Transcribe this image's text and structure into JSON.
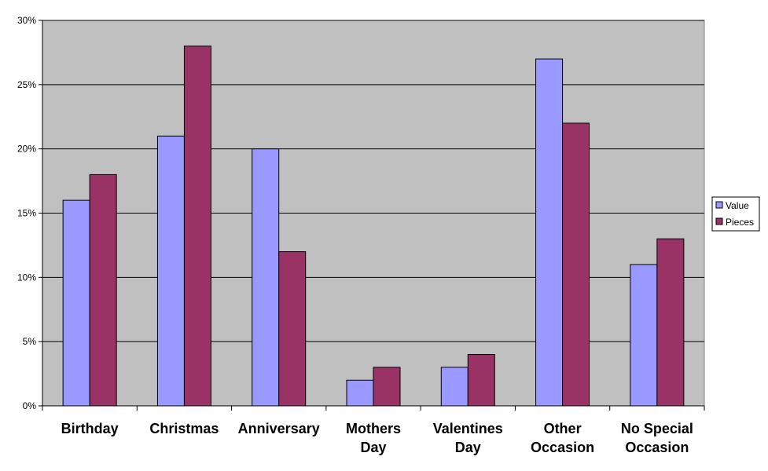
{
  "chart_data": {
    "type": "bar",
    "categories": [
      [
        "Birthday"
      ],
      [
        "Christmas"
      ],
      [
        "Anniversary"
      ],
      [
        "Mothers",
        "Day"
      ],
      [
        "Valentines",
        "Day"
      ],
      [
        "Other",
        "Occasion"
      ],
      [
        "No Special",
        "Occasion"
      ]
    ],
    "series": [
      {
        "name": "Value",
        "color": "#9999ff",
        "values": [
          16,
          21,
          20,
          2,
          3,
          27,
          11
        ]
      },
      {
        "name": "Pieces",
        "color": "#993366",
        "values": [
          18,
          28,
          12,
          3,
          4,
          22,
          13
        ]
      }
    ],
    "ylim": [
      0,
      30
    ],
    "yticks": [
      "0%",
      "5%",
      "10%",
      "15%",
      "20%",
      "25%",
      "30%"
    ],
    "ytick_values": [
      0,
      5,
      10,
      15,
      20,
      25,
      30
    ],
    "grid": true,
    "plot_background": "#c0c0c0",
    "legend_position": "right"
  }
}
